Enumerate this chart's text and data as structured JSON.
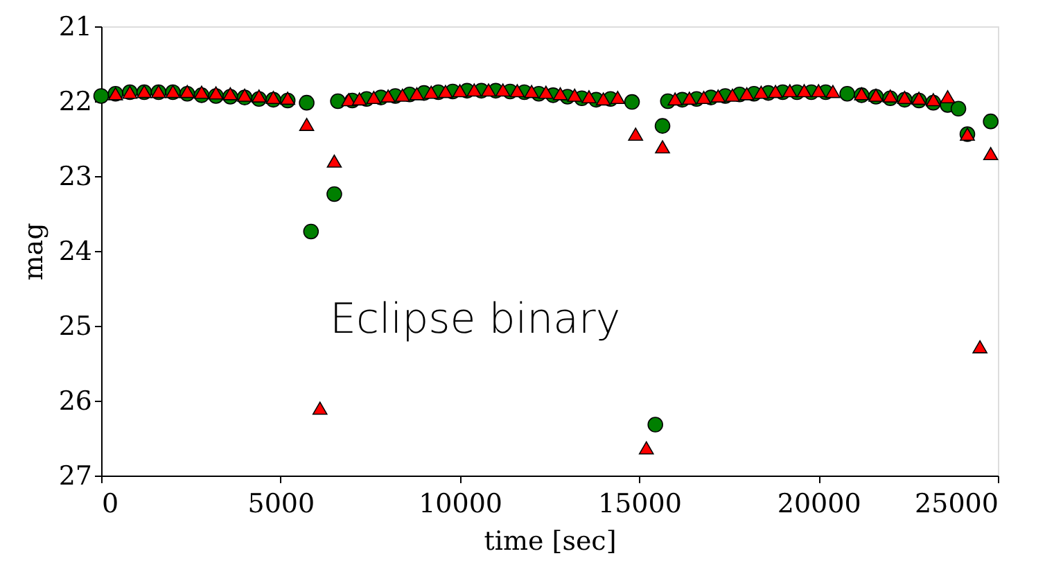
{
  "chart_data": {
    "type": "scatter",
    "xlabel": "time [sec]",
    "ylabel": "mag",
    "annotations": [
      "Eclipse binary"
    ],
    "xlim": [
      0,
      25000
    ],
    "xticks": [
      0,
      5000,
      10000,
      15000,
      20000,
      25000
    ],
    "ylim": [
      27,
      21
    ],
    "yticks": [
      21,
      22,
      23,
      24,
      25,
      26,
      27
    ],
    "grid": false,
    "series": [
      {
        "color": "#007f00",
        "marker": "circle",
        "x": [
          0,
          400,
          800,
          1200,
          1600,
          2000,
          2400,
          2800,
          3200,
          3600,
          4000,
          4400,
          4800,
          5200,
          5730,
          5850,
          6500,
          6600,
          7000,
          7400,
          7800,
          8200,
          8600,
          9000,
          9400,
          9800,
          10200,
          10600,
          11000,
          11400,
          11800,
          12200,
          12600,
          13000,
          13400,
          13800,
          14200,
          14800,
          15450,
          15650,
          15800,
          16200,
          16600,
          17000,
          17400,
          17800,
          18200,
          18600,
          19000,
          19400,
          19800,
          20200,
          20800,
          21200,
          21600,
          22000,
          22400,
          22800,
          23200,
          23600,
          23900,
          24150,
          24800
        ],
        "values": [
          21.93,
          21.9,
          21.88,
          21.88,
          21.88,
          21.88,
          21.9,
          21.92,
          21.93,
          21.94,
          21.95,
          21.97,
          21.98,
          21.99,
          22.02,
          23.74,
          23.24,
          22.0,
          21.99,
          21.97,
          21.95,
          21.93,
          21.91,
          21.89,
          21.88,
          21.87,
          21.86,
          21.86,
          21.86,
          21.87,
          21.88,
          21.9,
          21.92,
          21.94,
          21.96,
          21.98,
          21.97,
          22.01,
          26.32,
          22.33,
          22.0,
          21.98,
          21.97,
          21.95,
          21.93,
          21.91,
          21.9,
          21.89,
          21.88,
          21.88,
          21.88,
          21.88,
          21.9,
          21.92,
          21.94,
          21.96,
          21.98,
          21.99,
          22.02,
          22.05,
          22.1,
          22.44,
          22.27
        ]
      },
      {
        "color": "#ff0000",
        "marker": "triangle",
        "x": [
          400,
          800,
          1200,
          1600,
          2000,
          2400,
          2800,
          3200,
          3600,
          4000,
          4400,
          4800,
          5200,
          5730,
          6100,
          6500,
          6900,
          7200,
          7600,
          8000,
          8400,
          8800,
          9200,
          9600,
          10000,
          10400,
          10800,
          11200,
          11600,
          12000,
          12400,
          12800,
          13200,
          13600,
          14000,
          14400,
          14900,
          15200,
          15650,
          16000,
          16400,
          16800,
          17200,
          17600,
          18000,
          18400,
          18800,
          19200,
          19600,
          20000,
          20400,
          21200,
          21600,
          22000,
          22400,
          22800,
          23200,
          23600,
          24150,
          24500,
          24800
        ],
        "values": [
          21.9,
          21.88,
          21.87,
          21.87,
          21.87,
          21.87,
          21.88,
          21.89,
          21.9,
          21.92,
          21.93,
          21.95,
          21.96,
          22.31,
          26.1,
          22.8,
          21.98,
          21.97,
          21.95,
          21.93,
          21.92,
          21.9,
          21.88,
          21.87,
          21.86,
          21.85,
          21.85,
          21.85,
          21.86,
          21.87,
          21.88,
          21.9,
          21.92,
          21.94,
          21.97,
          21.95,
          22.44,
          26.63,
          22.61,
          21.97,
          21.96,
          21.95,
          21.93,
          21.92,
          21.9,
          21.88,
          21.87,
          21.86,
          21.86,
          21.86,
          21.87,
          21.9,
          21.92,
          21.93,
          21.95,
          21.96,
          21.98,
          21.94,
          22.44,
          25.28,
          22.7
        ]
      }
    ]
  }
}
